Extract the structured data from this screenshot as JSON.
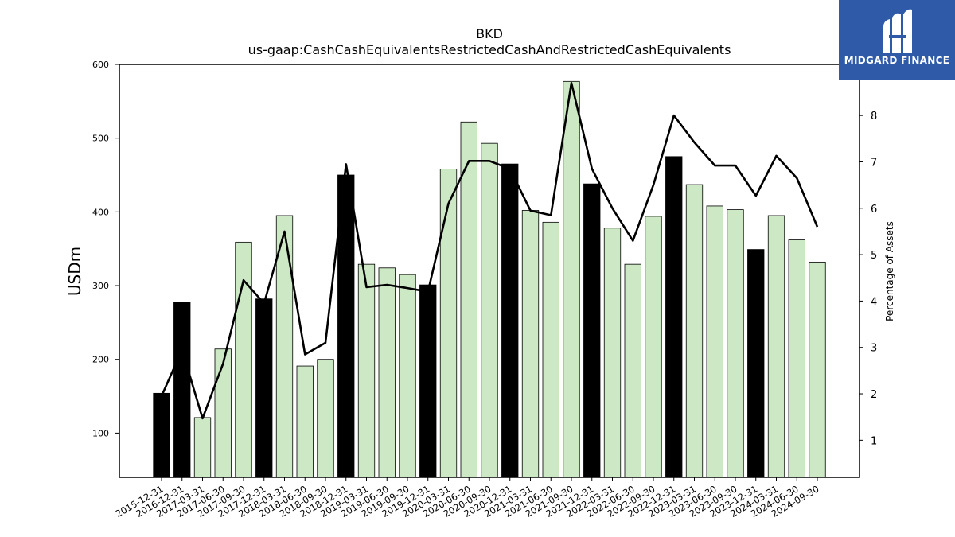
{
  "chart_data": {
    "type": "bar",
    "title": "BKD",
    "subtitle": "us-gaap:CashCashEquivalentsRestrictedCashAndRestrictedCashEquivalents",
    "ylabel": "USDm",
    "y2label": "Percentage of Assets",
    "ylim": [
      40,
      600
    ],
    "y2lim": [
      0.2,
      9.1
    ],
    "yticks": [
      100,
      200,
      300,
      400,
      500,
      600
    ],
    "y2ticks": [
      1,
      2,
      3,
      4,
      5,
      6,
      7,
      8
    ],
    "categories": [
      "2015-12-31",
      "2016-12-31",
      "2017-03-31",
      "2017-06-30",
      "2017-09-30",
      "2017-12-31",
      "2018-03-31",
      "2018-06-30",
      "2018-09-30",
      "2018-12-31",
      "2019-03-31",
      "2019-06-30",
      "2019-09-30",
      "2019-12-31",
      "2020-03-31",
      "2020-06-30",
      "2020-09-30",
      "2020-12-31",
      "2021-03-31",
      "2021-06-30",
      "2021-09-30",
      "2021-12-31",
      "2022-03-31",
      "2022-06-30",
      "2022-09-30",
      "2022-12-31",
      "2023-03-31",
      "2023-06-30",
      "2023-09-30",
      "2023-12-31",
      "2024-03-31",
      "2024-06-30",
      "2024-09-30"
    ],
    "series": [
      {
        "kind": "bar",
        "values": [
          154,
          277,
          121,
          214,
          359,
          282,
          395,
          191,
          200,
          450,
          329,
          324,
          315,
          301,
          458,
          522,
          493,
          465,
          402,
          386,
          577,
          438,
          378,
          329,
          394,
          475,
          437,
          408,
          403,
          349,
          395,
          362,
          332
        ],
        "annual": [
          true,
          true,
          false,
          false,
          false,
          true,
          false,
          false,
          false,
          true,
          false,
          false,
          false,
          true,
          false,
          false,
          false,
          true,
          false,
          false,
          false,
          true,
          false,
          false,
          false,
          true,
          false,
          false,
          false,
          true,
          false,
          false,
          false
        ]
      },
      {
        "kind": "line",
        "axis": "right",
        "values": [
          1.95,
          2.95,
          1.47,
          2.65,
          4.45,
          3.95,
          5.5,
          2.85,
          3.1,
          6.95,
          4.3,
          4.35,
          4.28,
          4.2,
          6.1,
          7.02,
          7.02,
          6.85,
          5.95,
          5.85,
          8.7,
          6.85,
          6.0,
          5.3,
          6.5,
          8.0,
          7.42,
          6.92,
          6.92,
          6.27,
          7.13,
          6.65,
          5.6
        ]
      }
    ],
    "colors": {
      "annual_bar": "#000000",
      "quarter_bar": "#cde8c5",
      "line": "#000000"
    }
  },
  "logo": {
    "text": "MIDGARD FINANCE",
    "background": "#2f5aa8"
  }
}
